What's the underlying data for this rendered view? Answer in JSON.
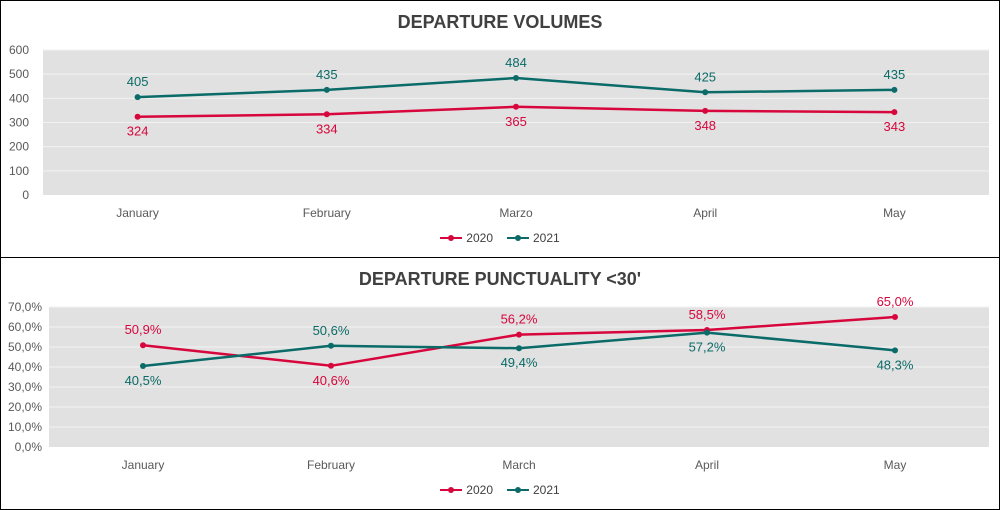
{
  "colors": {
    "s2020": "#D7063C",
    "s2021": "#0A6B68",
    "plot_bg": "#E1E1E1",
    "grid": "#F2F2F2",
    "axis_text": "#595959"
  },
  "chart_data": [
    {
      "type": "line",
      "title": "DEPARTURE VOLUMES",
      "categories": [
        "January",
        "February",
        "Marzo",
        "April",
        "May"
      ],
      "series": [
        {
          "name": "2020",
          "values": [
            324,
            334,
            365,
            348,
            343
          ],
          "labels": [
            "324",
            "334",
            "365",
            "348",
            "343"
          ],
          "label_pos": [
            "below",
            "below",
            "below",
            "below",
            "below"
          ]
        },
        {
          "name": "2021",
          "values": [
            405,
            435,
            484,
            425,
            435
          ],
          "labels": [
            "405",
            "435",
            "484",
            "425",
            "435"
          ],
          "label_pos": [
            "above",
            "above",
            "above",
            "above",
            "above"
          ]
        }
      ],
      "ylim": [
        0,
        600
      ],
      "yticks": [
        "0",
        "100",
        "200",
        "300",
        "400",
        "500",
        "600"
      ],
      "xlabel": "",
      "ylabel": "",
      "grid": true,
      "legend": "bottom"
    },
    {
      "type": "line",
      "title": "DEPARTURE PUNCTUALITY <30'",
      "categories": [
        "January",
        "February",
        "March",
        "April",
        "May"
      ],
      "series": [
        {
          "name": "2020",
          "values": [
            50.9,
            40.6,
            56.2,
            58.5,
            65.0
          ],
          "labels": [
            "50,9%",
            "40,6%",
            "56,2%",
            "58,5%",
            "65,0%"
          ],
          "label_pos": [
            "above",
            "below",
            "above",
            "above",
            "above"
          ]
        },
        {
          "name": "2021",
          "values": [
            40.5,
            50.6,
            49.4,
            57.2,
            48.3
          ],
          "labels": [
            "40,5%",
            "50,6%",
            "49,4%",
            "57,2%",
            "48,3%"
          ],
          "label_pos": [
            "below",
            "above",
            "below",
            "below",
            "below"
          ]
        }
      ],
      "ylim": [
        0,
        70
      ],
      "yticks": [
        "0,0%",
        "10,0%",
        "20,0%",
        "30,0%",
        "40,0%",
        "50,0%",
        "60,0%",
        "70,0%"
      ],
      "xlabel": "",
      "ylabel": "",
      "grid": true,
      "legend": "bottom"
    }
  ]
}
